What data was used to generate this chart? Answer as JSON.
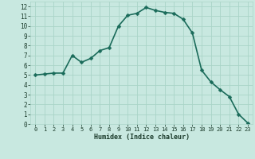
{
  "x": [
    0,
    1,
    2,
    3,
    4,
    5,
    6,
    7,
    8,
    9,
    10,
    11,
    12,
    13,
    14,
    15,
    16,
    17,
    18,
    19,
    20,
    21,
    22,
    23
  ],
  "y": [
    5.0,
    5.1,
    5.2,
    5.2,
    7.0,
    6.3,
    6.7,
    7.5,
    7.8,
    10.0,
    11.1,
    11.3,
    11.9,
    11.6,
    11.4,
    11.3,
    10.7,
    9.3,
    5.5,
    4.3,
    3.5,
    2.8,
    1.0,
    0.1
  ],
  "xlabel": "Humidex (Indice chaleur)",
  "xlim": [
    -0.5,
    23.5
  ],
  "ylim": [
    0,
    12.5
  ],
  "xticks": [
    0,
    1,
    2,
    3,
    4,
    5,
    6,
    7,
    8,
    9,
    10,
    11,
    12,
    13,
    14,
    15,
    16,
    17,
    18,
    19,
    20,
    21,
    22,
    23
  ],
  "yticks": [
    0,
    1,
    2,
    3,
    4,
    5,
    6,
    7,
    8,
    9,
    10,
    11,
    12
  ],
  "line_color": "#1a6b5a",
  "marker_color": "#1a6b5a",
  "bg_color": "#c8e8e0",
  "grid_color": "#aad4c8",
  "tick_label_color": "#1a3a2a",
  "axis_label_color": "#1a3a2a",
  "line_width": 1.2,
  "marker_size": 2.5
}
